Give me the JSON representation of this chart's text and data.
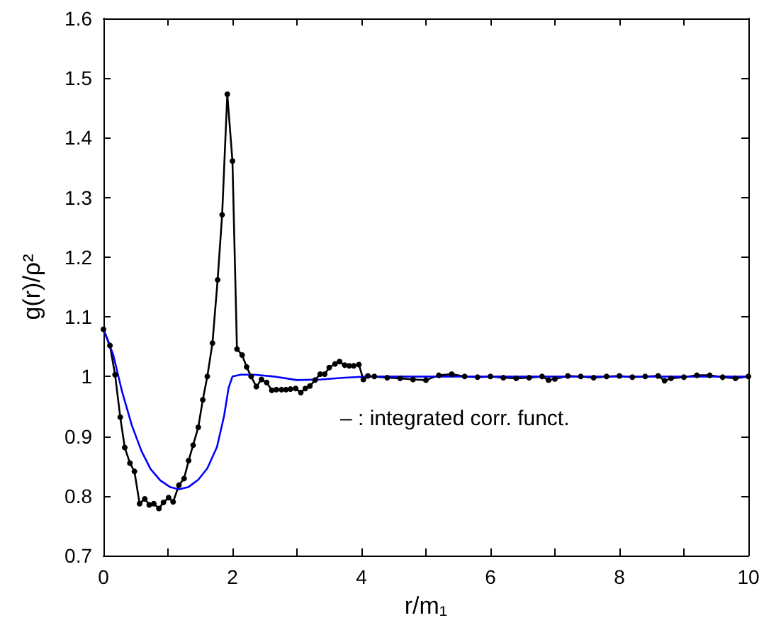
{
  "chart_data": {
    "type": "line",
    "xlabel": "r/m₁",
    "ylabel": "g(r)/ρ²",
    "xlim": [
      0,
      10
    ],
    "xticks": [
      0,
      {
        "value": 1,
        "label": null
      },
      2,
      {
        "value": 3,
        "label": null
      },
      4,
      {
        "value": 5,
        "label": null
      },
      6,
      {
        "value": 7,
        "label": null
      },
      8,
      {
        "value": 9,
        "label": null
      },
      10
    ],
    "ylim": [
      0.7,
      1.6
    ],
    "yticks": [
      0.7,
      0.8,
      0.9,
      1,
      1.1,
      1.2,
      1.3,
      1.4,
      1.5,
      1.6
    ],
    "annotations": [
      "– : integrated corr. funct."
    ],
    "series": [
      {
        "color": "#000000",
        "marker": "circle",
        "x": [
          0,
          0.1,
          0.18,
          0.26,
          0.33,
          0.41,
          0.48,
          0.56,
          0.64,
          0.71,
          0.78,
          0.86,
          0.93,
          1.01,
          1.08,
          1.17,
          1.25,
          1.32,
          1.39,
          1.47,
          1.54,
          1.61,
          1.69,
          1.77,
          1.84,
          1.92,
          2.0,
          2.07,
          2.15,
          2.22,
          2.29,
          2.37,
          2.45,
          2.53,
          2.61,
          2.68,
          2.76,
          2.83,
          2.9,
          2.98,
          3.06,
          3.13,
          3.2,
          3.28,
          3.36,
          3.43,
          3.5,
          3.59,
          3.66,
          3.74,
          3.81,
          3.88,
          3.96,
          4.03,
          4.1,
          4.2,
          4.4,
          4.6,
          4.8,
          5.0,
          5.2,
          5.4,
          5.6,
          5.8,
          6.0,
          6.2,
          6.4,
          6.6,
          6.8,
          6.9,
          7.0,
          7.2,
          7.4,
          7.6,
          7.8,
          8.0,
          8.2,
          8.4,
          8.6,
          8.7,
          8.8,
          9.0,
          9.2,
          9.4,
          9.6,
          9.8,
          10.0
        ],
        "values": [
          1.079,
          1.052,
          1.003,
          0.932,
          0.881,
          0.855,
          0.841,
          0.787,
          0.795,
          0.785,
          0.787,
          0.779,
          0.789,
          0.797,
          0.79,
          0.818,
          0.829,
          0.859,
          0.885,
          0.915,
          0.961,
          1.0,
          1.056,
          1.162,
          1.271,
          1.473,
          1.361,
          1.046,
          1.036,
          1.016,
          1.0,
          0.983,
          0.995,
          0.99,
          0.977,
          0.978,
          0.978,
          0.978,
          0.979,
          0.98,
          0.973,
          0.98,
          0.984,
          0.994,
          1.004,
          1.004,
          1.015,
          1.021,
          1.025,
          1.019,
          1.018,
          1.018,
          1.02,
          0.995,
          1.001,
          1.0,
          0.998,
          0.997,
          0.995,
          0.994,
          1.002,
          1.004,
          1.0,
          0.999,
          1.0,
          0.998,
          0.997,
          0.998,
          1.0,
          0.994,
          0.996,
          1.001,
          1.0,
          0.998,
          1.0,
          1.001,
          0.999,
          1.0,
          1.001,
          0.993,
          0.997,
          0.999,
          1.002,
          1.002,
          0.999,
          0.997,
          1.0
        ]
      },
      {
        "color": "#0000ff",
        "marker": "none",
        "x": [
          0,
          0.15,
          0.29,
          0.44,
          0.59,
          0.73,
          0.88,
          1.03,
          1.17,
          1.32,
          1.47,
          1.61,
          1.76,
          1.87,
          1.94,
          2.0,
          2.13,
          2.34,
          2.64,
          3.0,
          3.37,
          3.74,
          4.1,
          6.0,
          10.0
        ],
        "values": [
          1.079,
          1.037,
          0.974,
          0.918,
          0.875,
          0.845,
          0.826,
          0.815,
          0.811,
          0.815,
          0.827,
          0.846,
          0.882,
          0.934,
          0.981,
          1.0,
          1.003,
          1.003,
          1.0,
          0.994,
          0.995,
          0.998,
          1.0,
          1.0,
          1.0
        ]
      }
    ]
  }
}
